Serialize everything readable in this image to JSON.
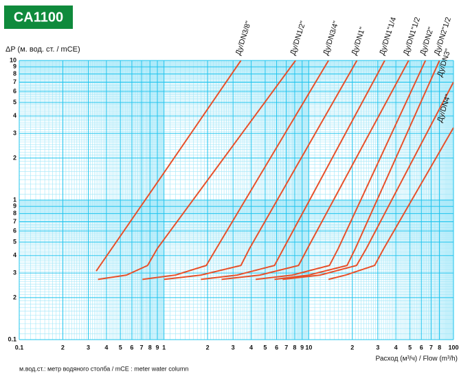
{
  "chart_data": {
    "type": "line",
    "title": "CA1100",
    "ylabel": "ΔP (м. вод. ст. / mCE)",
    "xlabel": "Расход (м³/ч) / Flow (m³/h)",
    "footnote": "м.вод.ст.: метр водяного столба / mCE : meter water column",
    "xscale": "log",
    "yscale": "log",
    "grid": true,
    "color": "#e8502a",
    "xlim": [
      0.1,
      100
    ],
    "ylim": [
      0.1,
      10
    ],
    "xticks": [
      0.1,
      {
        "value": 0.2,
        "label": "2"
      },
      {
        "value": 0.3,
        "label": "3"
      },
      {
        "value": 0.4,
        "label": "4"
      },
      {
        "value": 0.5,
        "label": "5"
      },
      {
        "value": 0.6,
        "label": "6"
      },
      {
        "value": 0.7,
        "label": "7"
      },
      {
        "value": 0.8,
        "label": "8"
      },
      {
        "value": 0.9,
        "label": "9"
      },
      1,
      {
        "value": 2,
        "label": "2"
      },
      {
        "value": 3,
        "label": "3"
      },
      {
        "value": 4,
        "label": "4"
      },
      {
        "value": 5,
        "label": "5"
      },
      {
        "value": 6,
        "label": "6"
      },
      {
        "value": 7,
        "label": "7"
      },
      {
        "value": 8,
        "label": "8"
      },
      {
        "value": 9,
        "label": "9"
      },
      10,
      {
        "value": 20,
        "label": "2"
      },
      {
        "value": 30,
        "label": "3"
      },
      {
        "value": 40,
        "label": "4"
      },
      {
        "value": 50,
        "label": "5"
      },
      {
        "value": 60,
        "label": "6"
      },
      {
        "value": 70,
        "label": "7"
      },
      {
        "value": 80,
        "label": "8"
      },
      100
    ],
    "yticks": [
      0.1,
      {
        "value": 0.2,
        "label": "2"
      },
      {
        "value": 0.3,
        "label": "3"
      },
      {
        "value": 0.4,
        "label": "4"
      },
      {
        "value": 0.5,
        "label": "5"
      },
      {
        "value": 0.6,
        "label": "6"
      },
      {
        "value": 0.7,
        "label": "7"
      },
      {
        "value": 0.8,
        "label": "8"
      },
      {
        "value": 0.9,
        "label": "9"
      },
      1,
      {
        "value": 2,
        "label": "2"
      },
      {
        "value": 3,
        "label": "3"
      },
      {
        "value": 4,
        "label": "4"
      },
      {
        "value": 5,
        "label": "5"
      },
      {
        "value": 6,
        "label": "6"
      },
      {
        "value": 7,
        "label": "7"
      },
      {
        "value": 8,
        "label": "8"
      },
      {
        "value": 9,
        "label": "9"
      },
      10
    ],
    "series": [
      {
        "name": "Ду/DN3/8\"",
        "x": [
          0.34,
          1,
          3.4
        ],
        "values": [
          0.31,
          1.57,
          10
        ]
      },
      {
        "name": "Ду/DN1/2\"",
        "x": [
          0.35,
          0.55,
          0.77,
          0.9,
          8.1
        ],
        "values": [
          0.27,
          0.29,
          0.34,
          0.45,
          10
        ]
      },
      {
        "name": "Ду/DN3/4\"",
        "x": [
          0.71,
          1.2,
          1.96,
          2.3,
          13.7
        ],
        "values": [
          0.27,
          0.29,
          0.34,
          0.45,
          10
        ]
      },
      {
        "name": "Ду/DN1\"",
        "x": [
          1.0,
          1.8,
          3.4,
          3.9,
          21.5
        ],
        "values": [
          0.27,
          0.29,
          0.34,
          0.45,
          10
        ]
      },
      {
        "name": "Ду/DN1\"1/4",
        "x": [
          1.8,
          3.2,
          5.8,
          6.7,
          33.5
        ],
        "values": [
          0.27,
          0.29,
          0.34,
          0.45,
          10
        ]
      },
      {
        "name": "Ду/DN1\"1/2",
        "x": [
          2.5,
          4.6,
          8.5,
          9.8,
          49
        ],
        "values": [
          0.27,
          0.29,
          0.34,
          0.45,
          10
        ]
      },
      {
        "name": "Ду/DN2\"",
        "x": [
          4.3,
          7.7,
          13.9,
          16,
          64
        ],
        "values": [
          0.27,
          0.29,
          0.34,
          0.45,
          10
        ]
      },
      {
        "name": "Ду/DN2\"1/2",
        "x": [
          5.8,
          10,
          18.4,
          21,
          80
        ],
        "values": [
          0.27,
          0.29,
          0.34,
          0.45,
          10
        ]
      },
      {
        "name": "Ду/DN3\"",
        "x": [
          6.6,
          12,
          21.4,
          25,
          100
        ],
        "values": [
          0.27,
          0.29,
          0.34,
          0.45,
          7
        ]
      },
      {
        "name": "Ду/DN4\"",
        "x": [
          13.7,
          18,
          28.5,
          33,
          100
        ],
        "values": [
          0.27,
          0.29,
          0.34,
          0.45,
          3.3
        ]
      }
    ]
  }
}
